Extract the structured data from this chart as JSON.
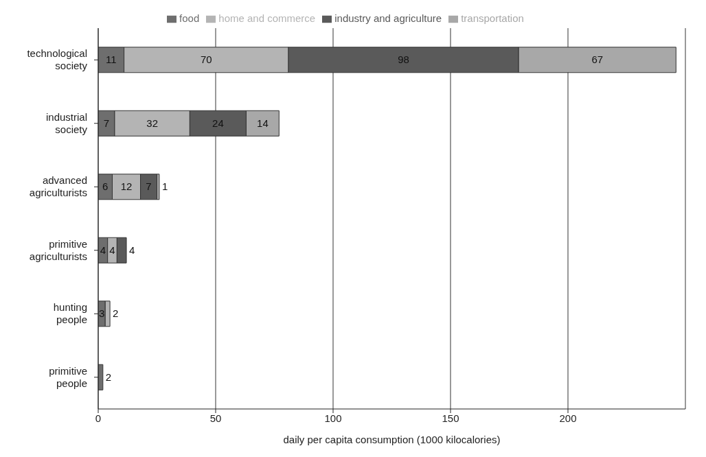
{
  "chart_data": {
    "type": "bar",
    "orientation": "horizontal",
    "stacked": true,
    "categories": [
      "technological society",
      "industrial society",
      "advanced agriculturists",
      "primitive agriculturists",
      "hunting people",
      "primitive people"
    ],
    "series": [
      {
        "name": "food",
        "color": "#6e6e6e",
        "values": [
          11,
          7,
          6,
          4,
          3,
          2
        ]
      },
      {
        "name": "home and commerce",
        "color": "#b4b4b4",
        "values": [
          70,
          32,
          12,
          4,
          2,
          null
        ]
      },
      {
        "name": "industry and agriculture",
        "color": "#5a5a5a",
        "values": [
          98,
          24,
          7,
          4,
          null,
          null
        ]
      },
      {
        "name": "transportation",
        "color": "#a8a8a8",
        "values": [
          67,
          14,
          1,
          null,
          null,
          null
        ]
      }
    ],
    "xlabel": "daily per capita consumption (1000 kilocalories)",
    "xlim": [
      0,
      250
    ],
    "xticks": [
      0,
      50,
      100,
      150,
      200
    ],
    "grid": "x",
    "legend": "top",
    "data_labels": true
  }
}
